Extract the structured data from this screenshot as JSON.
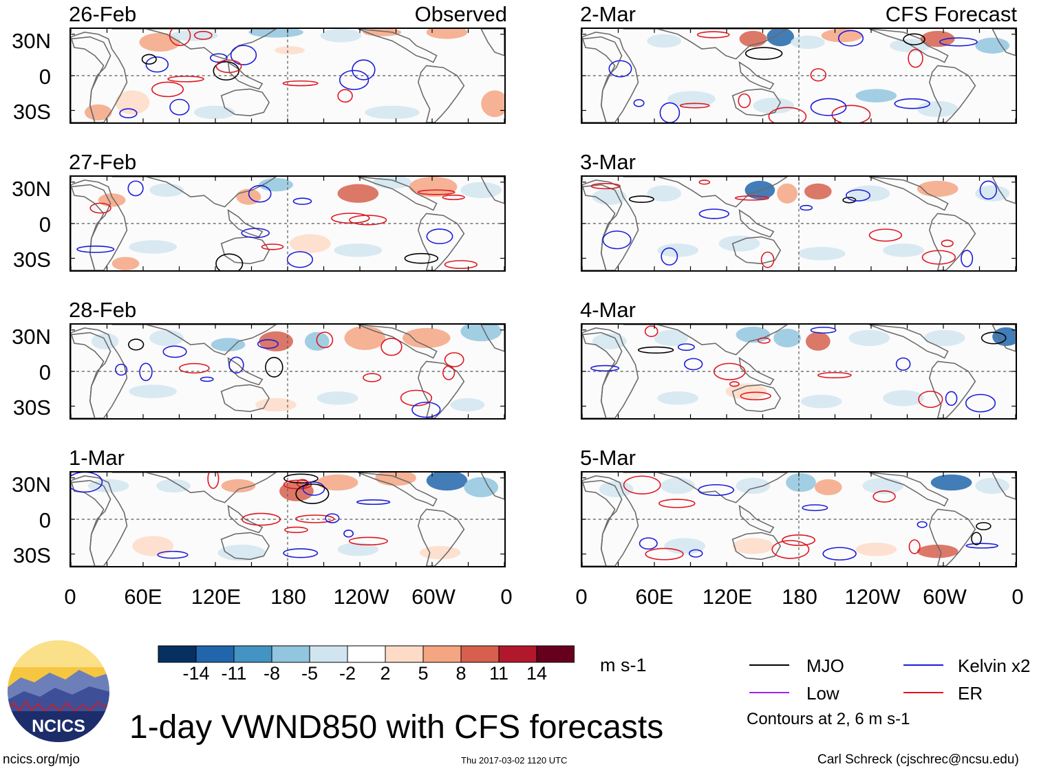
{
  "title": "1-day VWND850 with CFS forecasts",
  "labels": {
    "observed": "Observed",
    "forecast": "CFS Forecast"
  },
  "panels": {
    "observed": [
      {
        "date": "26-Feb"
      },
      {
        "date": "27-Feb"
      },
      {
        "date": "28-Feb"
      },
      {
        "date": "1-Mar"
      }
    ],
    "forecast": [
      {
        "date": "2-Mar"
      },
      {
        "date": "3-Mar"
      },
      {
        "date": "4-Mar"
      },
      {
        "date": "5-Mar"
      }
    ]
  },
  "axes": {
    "lat_ticks": [
      "30N",
      "0",
      "30S"
    ],
    "lon_ticks": [
      "0",
      "60E",
      "120E",
      "180",
      "120W",
      "60W",
      "0"
    ]
  },
  "colorbar": {
    "colors": [
      "#053061",
      "#2166ac",
      "#4393c3",
      "#92c5de",
      "#d1e5f0",
      "#ffffff",
      "#fddbc7",
      "#f4a582",
      "#d6604d",
      "#b2182b",
      "#67001f"
    ],
    "labels": [
      "-14",
      "-11",
      "-8",
      "-5",
      "-2",
      "2",
      "5",
      "8",
      "11",
      "14"
    ],
    "units": "m s-1"
  },
  "legend": {
    "items": [
      {
        "label": "MJO",
        "color": "#000000"
      },
      {
        "label": "Kelvin x2",
        "color": "#1a1adc"
      },
      {
        "label": "Low",
        "color": "#a020f0"
      },
      {
        "label": "ER",
        "color": "#e0141e"
      }
    ],
    "note": "Contours at 2, 6 m s-1"
  },
  "logo": {
    "text": "NCICS"
  },
  "footer": {
    "left": "ncics.org/mjo",
    "center": "Thu 2017-03-02 1120 UTC",
    "right": "Carl Schreck (cjschrec@ncsu.edu)"
  }
}
